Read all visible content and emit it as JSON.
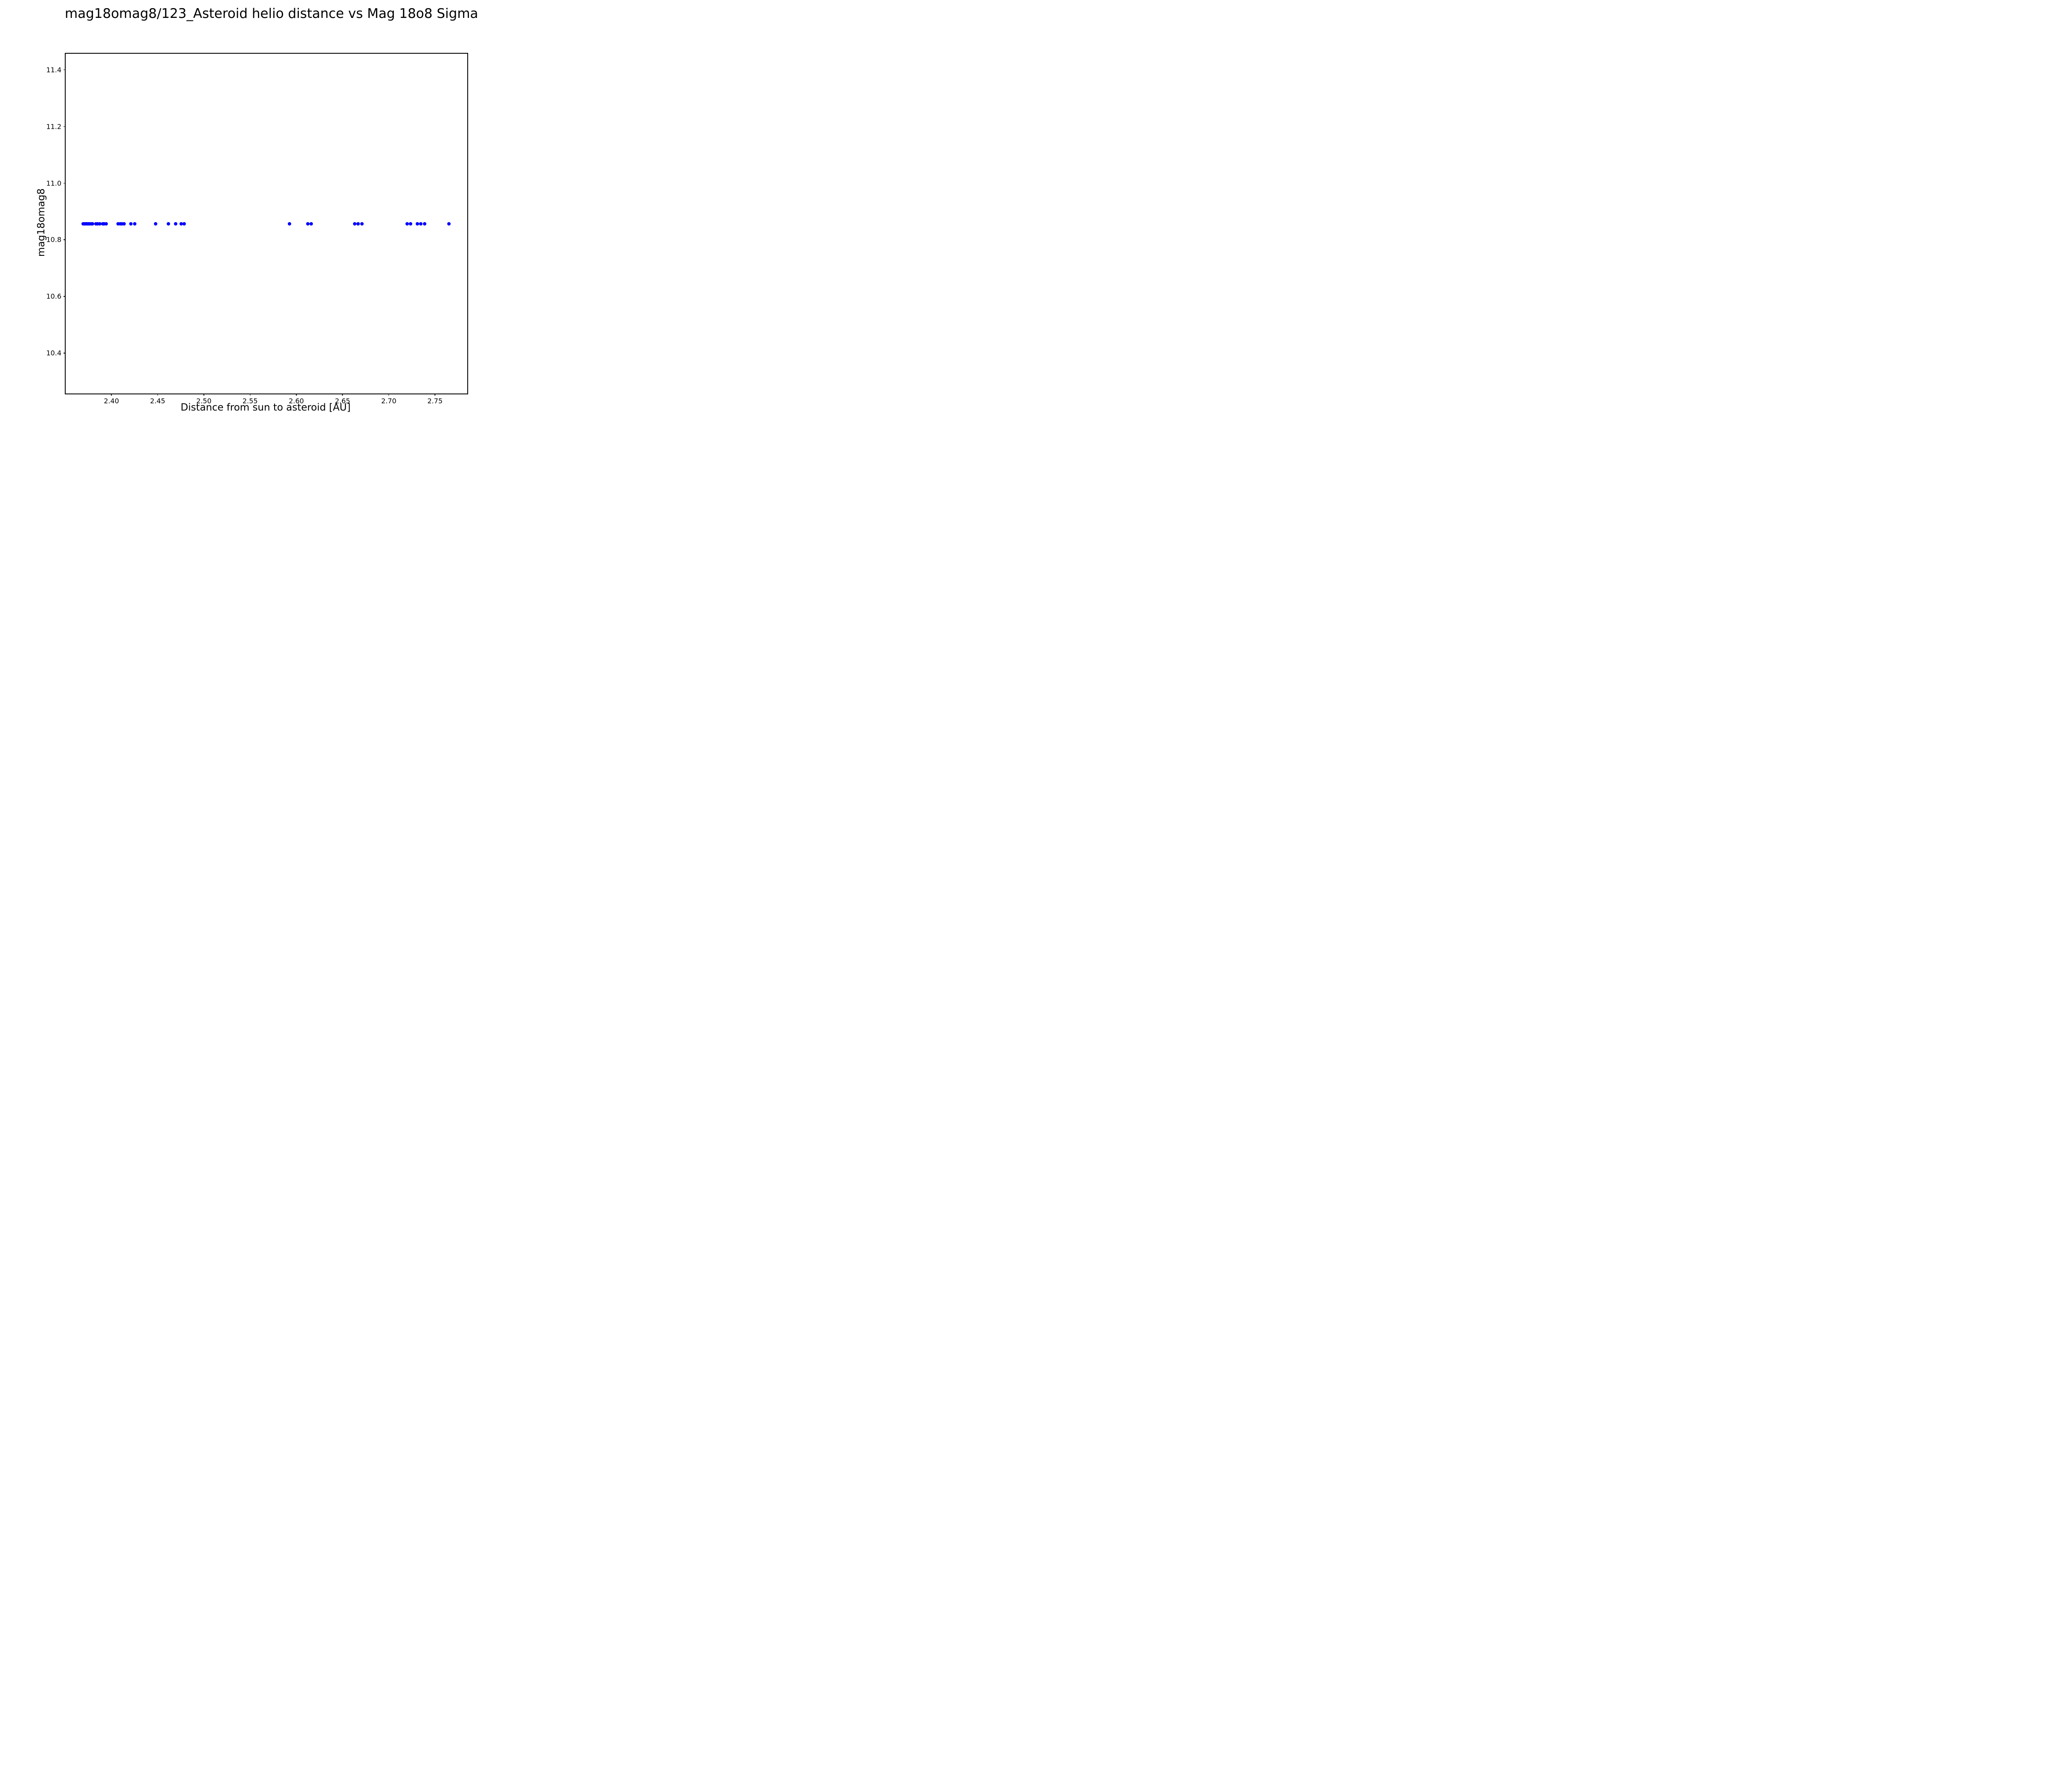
{
  "figure": {
    "background_color": "#ffffff",
    "frame_color": "#000000"
  },
  "chart_data": {
    "type": "scatter",
    "title": "mag18omag8/123_Asteroid helio distance vs Mag 18o8 Sigma",
    "xlabel": "Distance from sun to asteroid [AU]",
    "ylabel": "mag18omag8",
    "xlim": [
      2.3505,
      2.7849
    ],
    "ylim": [
      10.257,
      11.457
    ],
    "x_tick_values": [
      2.4,
      2.45,
      2.5,
      2.55,
      2.6,
      2.65,
      2.7,
      2.75
    ],
    "x_tick_labels": [
      "2.40",
      "2.45",
      "2.50",
      "2.55",
      "2.60",
      "2.65",
      "2.70",
      "2.75"
    ],
    "y_tick_values": [
      10.4,
      10.6,
      10.8,
      11.0,
      11.2,
      11.4
    ],
    "y_tick_labels": [
      "10.4",
      "10.6",
      "10.8",
      "11.0",
      "11.2",
      "11.4"
    ],
    "grid": false,
    "legend": false,
    "marker_color": "#0000ff",
    "marker_size_px": 8,
    "series": [
      {
        "name": "mag18omag8",
        "y_constant": 10.857,
        "x": [
          2.3693,
          2.3707,
          2.3721,
          2.3735,
          2.3749,
          2.3763,
          2.378,
          2.3797,
          2.3834,
          2.3849,
          2.3872,
          2.3904,
          2.392,
          2.3941,
          2.4074,
          2.4095,
          2.4114,
          2.4137,
          2.4212,
          2.425,
          2.4478,
          2.4618,
          2.4697,
          2.4754,
          2.4789,
          2.5927,
          2.6124,
          2.6163,
          2.6631,
          2.667,
          2.6708,
          2.7201,
          2.7237,
          2.731,
          2.7347,
          2.7386,
          2.7651
        ]
      }
    ]
  }
}
